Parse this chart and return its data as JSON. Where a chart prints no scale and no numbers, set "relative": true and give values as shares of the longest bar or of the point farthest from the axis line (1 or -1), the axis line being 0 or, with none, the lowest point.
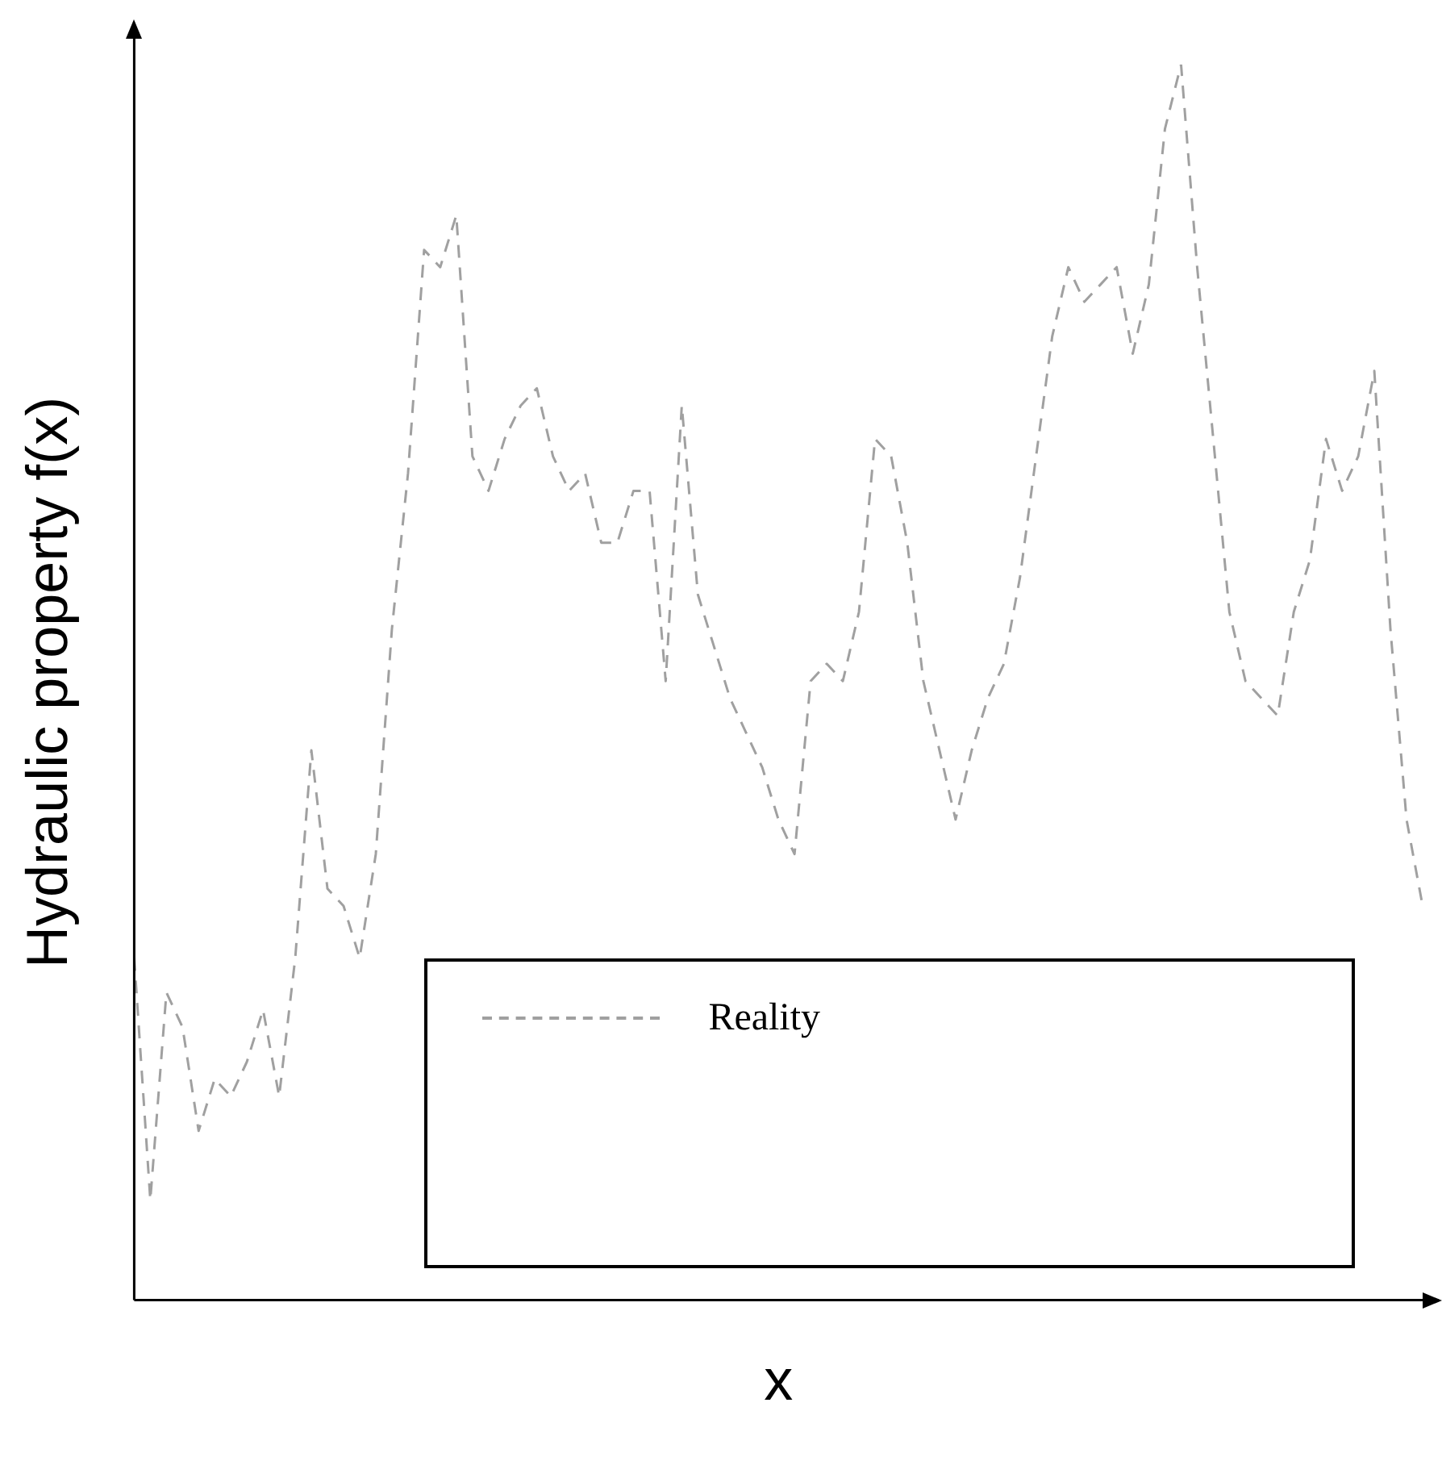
{
  "chart_data": {
    "type": "line",
    "relative": true,
    "xlabel": "x",
    "ylabel": "Hydraulic property f(x)",
    "legend": "bottom",
    "line_style": "dashed",
    "marker": "none",
    "grid": false,
    "categories": [
      null,
      null,
      null,
      null,
      null,
      null,
      null,
      null,
      null,
      null,
      null,
      null,
      null,
      null,
      null,
      null,
      null,
      null,
      null,
      null,
      null,
      null,
      null,
      null,
      null,
      null,
      null,
      null,
      null,
      null,
      null,
      null,
      null,
      null,
      null,
      null,
      null,
      null,
      null,
      null,
      null,
      null,
      null,
      null,
      null,
      null,
      null,
      null,
      null,
      null,
      null,
      null,
      null,
      null,
      null,
      null,
      null,
      null,
      null,
      null,
      null,
      null,
      null,
      null,
      null,
      null,
      null,
      null,
      null,
      null,
      null,
      null,
      null,
      null,
      null,
      null,
      null,
      null,
      null,
      null,
      null
    ],
    "series": [
      {
        "name": "Reality",
        "color": "#a0a0a0",
        "values": [
          0.277,
          0.081,
          0.249,
          0.221,
          0.137,
          0.179,
          0.165,
          0.193,
          0.235,
          0.165,
          0.277,
          0.445,
          0.333,
          0.319,
          0.277,
          0.361,
          0.543,
          0.669,
          0.85,
          0.836,
          0.878,
          0.683,
          0.655,
          0.697,
          0.724,
          0.738,
          0.683,
          0.655,
          0.669,
          0.613,
          0.613,
          0.655,
          0.655,
          0.501,
          0.724,
          0.571,
          0.529,
          0.487,
          0.459,
          0.431,
          0.389,
          0.361,
          0.501,
          0.515,
          0.501,
          0.557,
          0.697,
          0.683,
          0.613,
          0.501,
          0.445,
          0.389,
          0.445,
          0.487,
          0.515,
          0.585,
          0.683,
          0.78,
          0.836,
          0.808,
          0.822,
          0.836,
          0.766,
          0.822,
          0.948,
          1,
          0.836,
          0.697,
          0.557,
          0.501,
          0.487,
          0.473,
          0.557,
          0.599,
          0.697,
          0.655,
          0.683,
          0.752,
          0.543,
          0.389,
          0.319
        ]
      }
    ]
  }
}
